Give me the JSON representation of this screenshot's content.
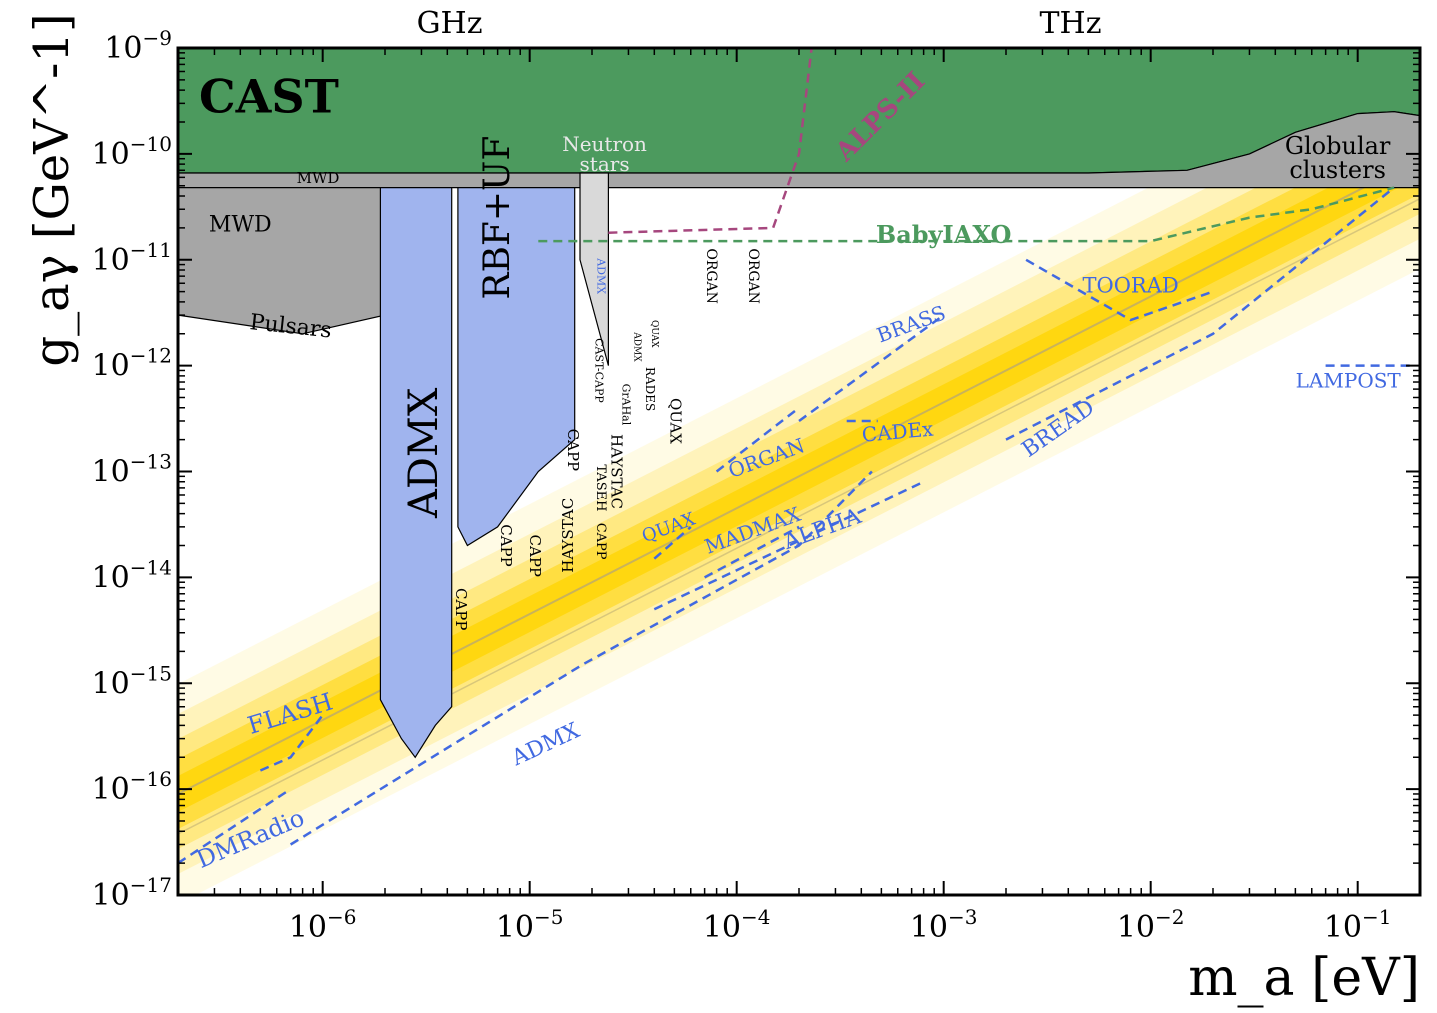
{
  "chart_data": {
    "type": "area",
    "xlabel": "m_a [eV]",
    "ylabel": "g_aγ [GeV^-1]",
    "x_scale": "log",
    "y_scale": "log",
    "xlim": [
      2e-07,
      0.2
    ],
    "ylim": [
      1e-17,
      1e-09
    ],
    "grid": false,
    "x_ticks": [
      {
        "value": 1e-06,
        "label": "10^-6"
      },
      {
        "value": 1e-05,
        "label": "10^-5"
      },
      {
        "value": 0.0001,
        "label": "10^-4"
      },
      {
        "value": 0.001,
        "label": "10^-3"
      },
      {
        "value": 0.01,
        "label": "10^-2"
      },
      {
        "value": 0.1,
        "label": "10^-1"
      }
    ],
    "y_ticks": [
      {
        "value": 1e-09,
        "label": "10^-9"
      },
      {
        "value": 1e-10,
        "label": "10^-10"
      },
      {
        "value": 1e-11,
        "label": "10^-11"
      },
      {
        "value": 1e-12,
        "label": "10^-12"
      },
      {
        "value": 1e-13,
        "label": "10^-13"
      },
      {
        "value": 1e-14,
        "label": "10^-14"
      },
      {
        "value": 1e-15,
        "label": "10^-15"
      },
      {
        "value": 1e-16,
        "label": "10^-16"
      },
      {
        "value": 1e-17,
        "label": "10^-17"
      }
    ],
    "top_axis_labels": [
      {
        "text": "GHz",
        "x": 4.1e-06
      },
      {
        "text": "THz",
        "x": 0.0041
      }
    ],
    "theory_band": {
      "color": "#ffd400",
      "slope": 1,
      "center": [
        [
          2e-07,
          9e-17
        ],
        [
          0.2,
          9e-11
        ]
      ]
    },
    "constraints": [
      {
        "name": "CAST",
        "color": "#4c9a5e",
        "points": [
          [
            2e-07,
            1e-09
          ],
          [
            0.2,
            1e-09
          ],
          [
            0.2,
            2.3e-10
          ],
          [
            0.15,
            2.5e-10
          ],
          [
            0.1,
            2.4e-10
          ],
          [
            0.05,
            1.6e-10
          ],
          [
            0.03,
            1e-10
          ],
          [
            0.015,
            7e-11
          ],
          [
            0.005,
            6.6e-11
          ],
          [
            2e-07,
            6.6e-11
          ]
        ]
      },
      {
        "name": "Globular clusters",
        "color": "#a6a6a6",
        "points": [
          [
            2e-07,
            6.6e-11
          ],
          [
            0.005,
            6.6e-11
          ],
          [
            0.015,
            7e-11
          ],
          [
            0.03,
            1e-10
          ],
          [
            0.05,
            1.6e-10
          ],
          [
            0.1,
            2.4e-10
          ],
          [
            0.15,
            2.5e-10
          ],
          [
            0.2,
            2.3e-10
          ],
          [
            0.2,
            4.8e-11
          ],
          [
            2e-07,
            4.8e-11
          ]
        ]
      },
      {
        "name": "MWD",
        "color": "#a6a6a6",
        "points": [
          [
            2e-07,
            4.8e-11
          ],
          [
            2e-06,
            4.8e-11
          ],
          [
            2e-06,
            3e-12
          ],
          [
            8e-07,
            2e-12
          ],
          [
            2e-07,
            3e-12
          ]
        ]
      },
      {
        "name": "ADMX",
        "color": "#a0b4ee",
        "points": [
          [
            1.9e-06,
            4.8e-11
          ],
          [
            4.2e-06,
            4.8e-11
          ],
          [
            4.2e-06,
            6e-16
          ],
          [
            3.5e-06,
            4e-16
          ],
          [
            2.8e-06,
            2e-16
          ],
          [
            2.4e-06,
            3e-16
          ],
          [
            1.9e-06,
            7e-16
          ]
        ]
      },
      {
        "name": "RBF+UF",
        "color": "#a0b4ee",
        "points": [
          [
            4.5e-06,
            4.8e-11
          ],
          [
            1.65e-05,
            4.8e-11
          ],
          [
            1.65e-05,
            2e-13
          ],
          [
            1.1e-05,
            1e-13
          ],
          [
            7e-06,
            3e-14
          ],
          [
            5e-06,
            2e-14
          ],
          [
            4.5e-06,
            3e-14
          ]
        ]
      },
      {
        "name": "Neutron stars",
        "color": "#d9d9d9",
        "points": [
          [
            1.75e-05,
            6.6e-11
          ],
          [
            2.4e-05,
            6.6e-11
          ],
          [
            2.4e-05,
            1e-12
          ],
          [
            1.75e-05,
            1e-11
          ]
        ]
      }
    ],
    "projections": [
      {
        "name": "BabyIAXO",
        "color": "#4c9a5e",
        "points": [
          [
            1.1e-05,
            1.5e-11
          ],
          [
            0.01,
            1.5e-11
          ],
          [
            0.03,
            2.5e-11
          ],
          [
            0.06,
            3e-11
          ],
          [
            0.15,
            4.8e-11
          ]
        ]
      },
      {
        "name": "ALPS-II",
        "color": "#a6477e",
        "points": [
          [
            2.4e-05,
            1.8e-11
          ],
          [
            0.00015,
            2e-11
          ],
          [
            0.0002,
            1e-10
          ],
          [
            0.00023,
            1e-09
          ]
        ]
      },
      {
        "name": "ADMX",
        "color": "#4169e1",
        "points": [
          [
            7e-07,
            3e-17
          ],
          [
            1.8e-05,
            1.5e-15
          ],
          [
            0.0002,
            2e-14
          ],
          [
            0.00045,
            1e-13
          ]
        ]
      },
      {
        "name": "DMRadio",
        "color": "#4169e1",
        "points": [
          [
            2e-07,
            2e-17
          ],
          [
            7e-07,
            1e-16
          ]
        ]
      },
      {
        "name": "FLASH",
        "color": "#4169e1",
        "points": [
          [
            5e-07,
            1.5e-16
          ],
          [
            7e-07,
            2e-16
          ],
          [
            1e-06,
            5e-16
          ]
        ]
      },
      {
        "name": "ALPHA",
        "color": "#4169e1",
        "points": [
          [
            4e-05,
            5e-15
          ],
          [
            0.0008,
            8e-14
          ]
        ]
      },
      {
        "name": "MADMAX",
        "color": "#4169e1",
        "points": [
          [
            7e-05,
            1e-14
          ],
          [
            0.0002,
            3e-14
          ]
        ]
      },
      {
        "name": "QUAX",
        "color": "#4169e1",
        "points": [
          [
            4e-05,
            1.5e-14
          ],
          [
            6e-05,
            3e-14
          ]
        ]
      },
      {
        "name": "ORGAN",
        "color": "#4169e1",
        "points": [
          [
            8e-05,
            1e-13
          ],
          [
            0.0002,
            4e-13
          ]
        ]
      },
      {
        "name": "BRASS",
        "color": "#4169e1",
        "points": [
          [
            0.0002,
            3e-13
          ],
          [
            0.001,
            3e-12
          ]
        ]
      },
      {
        "name": "CADEx",
        "color": "#4169e1",
        "points": [
          [
            0.00034,
            3e-13
          ],
          [
            0.00048,
            3e-13
          ]
        ]
      },
      {
        "name": "BREAD",
        "color": "#4169e1",
        "points": [
          [
            0.002,
            2e-13
          ],
          [
            0.02,
            2e-12
          ],
          [
            0.15,
            4.8e-11
          ]
        ]
      },
      {
        "name": "TOORAD",
        "color": "#4169e1",
        "points": [
          [
            0.0025,
            1e-11
          ],
          [
            0.008,
            2.7e-12
          ],
          [
            0.02,
            5e-12
          ]
        ]
      },
      {
        "name": "LAMPOST",
        "color": "#4169e1",
        "points": [
          [
            0.07,
            1e-12
          ],
          [
            0.19,
            1e-12
          ]
        ]
      }
    ],
    "labels": [
      {
        "text": "CAST",
        "x": 5.5e-07,
        "y": 3.2e-10,
        "color": "#000000",
        "size": 46,
        "weight": "bold",
        "rotate": 0
      },
      {
        "text": "Neutron",
        "x": 2.3e-05,
        "y": 1.2e-10,
        "color": "#e8e8e8",
        "size": 20,
        "weight": "normal",
        "rotate": 0
      },
      {
        "text": "stars",
        "x": 2.3e-05,
        "y": 7.8e-11,
        "color": "#e8e8e8",
        "size": 20,
        "weight": "normal",
        "rotate": 0
      },
      {
        "text": "ALPS-II",
        "x": 0.0005,
        "y": 2.2e-10,
        "color": "#a6477e",
        "size": 26,
        "weight": "bold",
        "rotate": -45
      },
      {
        "text": "Globular",
        "x": 0.08,
        "y": 1.15e-10,
        "color": "#000000",
        "size": 24,
        "weight": "normal",
        "rotate": 0
      },
      {
        "text": "clusters",
        "x": 0.08,
        "y": 6.8e-11,
        "color": "#000000",
        "size": 24,
        "weight": "normal",
        "rotate": 0
      },
      {
        "text": "MWD",
        "x": 9.5e-07,
        "y": 5.8e-11,
        "color": "#000000",
        "size": 15,
        "weight": "normal",
        "rotate": 0
      },
      {
        "text": "MWD",
        "x": 4e-07,
        "y": 2.1e-11,
        "color": "#000000",
        "size": 22,
        "weight": "normal",
        "rotate": 0
      },
      {
        "text": "Pulsars",
        "x": 7e-07,
        "y": 2.3e-12,
        "color": "#000000",
        "size": 22,
        "weight": "normal",
        "rotate": 6
      },
      {
        "text": "BabyIAXO",
        "x": 0.001,
        "y": 1.65e-11,
        "color": "#4c9a5e",
        "size": 24,
        "weight": "bold",
        "rotate": 0
      },
      {
        "text": "ADMX",
        "x": 3.2e-06,
        "y": 1.5e-13,
        "color": "#000000",
        "size": 40,
        "weight": "normal",
        "rotate": -90
      },
      {
        "text": "RBF+UF",
        "x": 7.2e-06,
        "y": 2.5e-11,
        "color": "#000000",
        "size": 36,
        "weight": "normal",
        "rotate": -90
      },
      {
        "text": "CAPP",
        "x": 4.6e-06,
        "y": 5e-15,
        "color": "#000000",
        "size": 15,
        "weight": "normal",
        "rotate": 90
      },
      {
        "text": "CAPP",
        "x": 7.6e-06,
        "y": 2e-14,
        "color": "#000000",
        "size": 15,
        "weight": "normal",
        "rotate": 90
      },
      {
        "text": "CAPP",
        "x": 1.05e-05,
        "y": 1.6e-14,
        "color": "#000000",
        "size": 15,
        "weight": "normal",
        "rotate": 90
      },
      {
        "text": "HAYSTAC",
        "x": 1.55e-05,
        "y": 2.5e-14,
        "color": "#000000",
        "size": 15,
        "weight": "normal",
        "rotate": -90
      },
      {
        "text": "CAPP",
        "x": 1.6e-05,
        "y": 1.6e-13,
        "color": "#000000",
        "size": 15,
        "weight": "normal",
        "rotate": 90
      },
      {
        "text": "CAPP",
        "x": 2.2e-05,
        "y": 2.2e-14,
        "color": "#000000",
        "size": 13,
        "weight": "normal",
        "rotate": 90
      },
      {
        "text": "TASEH",
        "x": 2.2e-05,
        "y": 7e-14,
        "color": "#000000",
        "size": 13,
        "weight": "normal",
        "rotate": 90
      },
      {
        "text": "HAYSTAC",
        "x": 2.6e-05,
        "y": 1e-13,
        "color": "#000000",
        "size": 15,
        "weight": "normal",
        "rotate": 90
      },
      {
        "text": "CAST-CAPP",
        "x": 2.15e-05,
        "y": 9e-13,
        "color": "#000000",
        "size": 11,
        "weight": "normal",
        "rotate": 90
      },
      {
        "text": "ADMX",
        "x": 2.2e-05,
        "y": 7e-12,
        "color": "#4169e1",
        "size": 11,
        "weight": "normal",
        "rotate": 90
      },
      {
        "text": "GrAHal",
        "x": 2.9e-05,
        "y": 4.3e-13,
        "color": "#000000",
        "size": 11,
        "weight": "normal",
        "rotate": 90
      },
      {
        "text": "ADMX",
        "x": 3.3e-05,
        "y": 1.5e-12,
        "color": "#000000",
        "size": 9,
        "weight": "normal",
        "rotate": 90
      },
      {
        "text": "RADES",
        "x": 3.8e-05,
        "y": 6e-13,
        "color": "#000000",
        "size": 12,
        "weight": "normal",
        "rotate": 90
      },
      {
        "text": "QUAX",
        "x": 4e-05,
        "y": 2e-12,
        "color": "#000000",
        "size": 9,
        "weight": "normal",
        "rotate": 90
      },
      {
        "text": "QUAX",
        "x": 5e-05,
        "y": 3e-13,
        "color": "#000000",
        "size": 15,
        "weight": "normal",
        "rotate": 90
      },
      {
        "text": "ORGAN",
        "x": 7.5e-05,
        "y": 7e-12,
        "color": "#000000",
        "size": 14,
        "weight": "normal",
        "rotate": 90
      },
      {
        "text": "ORGAN",
        "x": 0.00012,
        "y": 7e-12,
        "color": "#000000",
        "size": 14,
        "weight": "normal",
        "rotate": 90
      },
      {
        "text": "FLASH",
        "x": 7e-07,
        "y": 5e-16,
        "color": "#4169e1",
        "size": 24,
        "weight": "normal",
        "rotate": -17
      },
      {
        "text": "DMRadio",
        "x": 4.5e-07,
        "y": 3.3e-17,
        "color": "#4169e1",
        "size": 24,
        "weight": "normal",
        "rotate": -23
      },
      {
        "text": "ADMX",
        "x": 1.2e-05,
        "y": 2.6e-16,
        "color": "#4169e1",
        "size": 22,
        "weight": "normal",
        "rotate": -25
      },
      {
        "text": "QUAX",
        "x": 4.7e-05,
        "y": 2.9e-14,
        "color": "#4169e1",
        "size": 18,
        "weight": "normal",
        "rotate": -20
      },
      {
        "text": "MADMAX",
        "x": 0.00012,
        "y": 2.7e-14,
        "color": "#4169e1",
        "size": 20,
        "weight": "normal",
        "rotate": -20
      },
      {
        "text": "ALPHA",
        "x": 0.00026,
        "y": 2.8e-14,
        "color": "#4169e1",
        "size": 22,
        "weight": "normal",
        "rotate": -20
      },
      {
        "text": "ORGAN",
        "x": 0.00014,
        "y": 1.3e-13,
        "color": "#4169e1",
        "size": 20,
        "weight": "normal",
        "rotate": -20
      },
      {
        "text": "CADEx",
        "x": 0.0006,
        "y": 2.3e-13,
        "color": "#4169e1",
        "size": 20,
        "weight": "normal",
        "rotate": -5
      },
      {
        "text": "BRASS",
        "x": 0.0007,
        "y": 2.4e-12,
        "color": "#4169e1",
        "size": 20,
        "weight": "normal",
        "rotate": -20
      },
      {
        "text": "BREAD",
        "x": 0.0036,
        "y": 2.5e-13,
        "color": "#4169e1",
        "size": 22,
        "weight": "normal",
        "rotate": -35
      },
      {
        "text": "TOORAD",
        "x": 0.008,
        "y": 5.5e-12,
        "color": "#4169e1",
        "size": 21,
        "weight": "normal",
        "rotate": 0
      },
      {
        "text": "LAMPOST",
        "x": 0.09,
        "y": 7e-13,
        "color": "#4169e1",
        "size": 20,
        "weight": "normal",
        "rotate": 0
      }
    ]
  }
}
